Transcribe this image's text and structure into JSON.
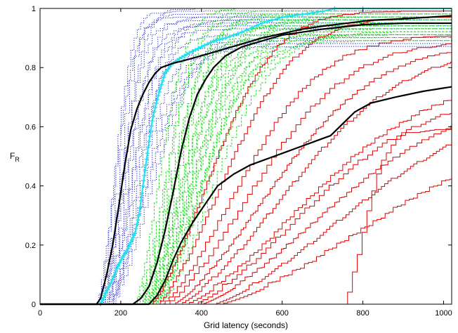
{
  "chart_data": {
    "type": "line",
    "xlabel": "Grid latency (seconds)",
    "ylabel": {
      "main": "F",
      "sub": "R"
    },
    "xlim": [
      0,
      1020
    ],
    "ylim": [
      0,
      1
    ],
    "x_ticks": [
      0,
      200,
      400,
      600,
      800,
      1000
    ],
    "x_tick_labels": [
      "0",
      "200",
      "400",
      "600",
      "800",
      "1000"
    ],
    "y_ticks": [
      0,
      0.2,
      0.4,
      0.6,
      0.8,
      1
    ],
    "y_tick_labels": [
      "0",
      "0.2",
      "0.4",
      "0.6",
      "0.8",
      "1"
    ],
    "grid": false,
    "legend": "none",
    "groups": [
      {
        "color": "#1a1ad8",
        "style": "dotted",
        "width": 1,
        "curves": [
          {
            "offset": 140,
            "half": 70,
            "sat": 0.96
          },
          {
            "offset": 145,
            "half": 60,
            "sat": 0.98
          },
          {
            "offset": 148,
            "half": 80,
            "sat": 0.95
          },
          {
            "offset": 150,
            "half": 65,
            "sat": 0.97
          },
          {
            "offset": 152,
            "half": 90,
            "sat": 0.93
          },
          {
            "offset": 155,
            "half": 75,
            "sat": 0.99
          },
          {
            "offset": 158,
            "half": 100,
            "sat": 0.92
          },
          {
            "offset": 160,
            "half": 85,
            "sat": 0.96
          },
          {
            "offset": 162,
            "half": 110,
            "sat": 0.9
          },
          {
            "offset": 165,
            "half": 95,
            "sat": 0.94
          },
          {
            "offset": 168,
            "half": 120,
            "sat": 0.88
          },
          {
            "offset": 170,
            "half": 130,
            "sat": 0.87
          },
          {
            "offset": 172,
            "half": 140,
            "sat": 0.86
          },
          {
            "offset": 175,
            "half": 105,
            "sat": 0.95
          },
          {
            "offset": 178,
            "half": 150,
            "sat": 0.89
          }
        ]
      },
      {
        "color": "#22dd22",
        "style": "dashed",
        "width": 1,
        "curves": [
          {
            "offset": 235,
            "half": 95,
            "sat": 0.99
          },
          {
            "offset": 240,
            "half": 110,
            "sat": 0.97
          },
          {
            "offset": 245,
            "half": 120,
            "sat": 0.95
          },
          {
            "offset": 248,
            "half": 100,
            "sat": 0.98
          },
          {
            "offset": 250,
            "half": 130,
            "sat": 0.93
          },
          {
            "offset": 255,
            "half": 115,
            "sat": 0.96
          },
          {
            "offset": 258,
            "half": 140,
            "sat": 0.92
          },
          {
            "offset": 260,
            "half": 125,
            "sat": 0.97
          },
          {
            "offset": 262,
            "half": 150,
            "sat": 0.91
          },
          {
            "offset": 265,
            "half": 135,
            "sat": 0.94
          },
          {
            "offset": 268,
            "half": 160,
            "sat": 0.9
          },
          {
            "offset": 270,
            "half": 145,
            "sat": 0.95
          },
          {
            "offset": 272,
            "half": 170,
            "sat": 0.89
          },
          {
            "offset": 275,
            "half": 155,
            "sat": 0.93
          },
          {
            "offset": 278,
            "half": 180,
            "sat": 0.88
          },
          {
            "offset": 280,
            "half": 165,
            "sat": 0.96
          },
          {
            "offset": 282,
            "half": 190,
            "sat": 0.92
          },
          {
            "offset": 285,
            "half": 200,
            "sat": 0.9
          },
          {
            "offset": 290,
            "half": 175,
            "sat": 0.94
          },
          {
            "offset": 295,
            "half": 210,
            "sat": 0.91
          }
        ]
      },
      {
        "color": "#e00000",
        "style": "solid",
        "width": 1,
        "curves": [
          {
            "offset": 275,
            "half": 230,
            "sat": 0.98
          },
          {
            "offset": 290,
            "half": 260,
            "sat": 0.96
          },
          {
            "offset": 300,
            "half": 300,
            "sat": 0.9
          },
          {
            "offset": 310,
            "half": 340,
            "sat": 0.88
          },
          {
            "offset": 330,
            "half": 380,
            "sat": 0.87
          },
          {
            "offset": 345,
            "half": 420,
            "sat": 0.86
          },
          {
            "offset": 360,
            "half": 460,
            "sat": 0.76
          },
          {
            "offset": 380,
            "half": 430,
            "sat": 0.7
          },
          {
            "offset": 400,
            "half": 480,
            "sat": 0.69
          },
          {
            "offset": 430,
            "half": 520,
            "sat": 0.68
          },
          {
            "offset": 445,
            "half": 600,
            "sat": 0.62
          },
          {
            "offset": 750,
            "half": 80,
            "sat": 0.58
          }
        ]
      }
    ],
    "cyan_series": {
      "color": "#22e0f0",
      "marker": "+",
      "points": [
        [
          150,
          0.0
        ],
        [
          160,
          0.03
        ],
        [
          175,
          0.07
        ],
        [
          190,
          0.12
        ],
        [
          205,
          0.16
        ],
        [
          215,
          0.18
        ],
        [
          225,
          0.21
        ],
        [
          235,
          0.24
        ],
        [
          245,
          0.3
        ],
        [
          255,
          0.4
        ],
        [
          262,
          0.47
        ],
        [
          270,
          0.55
        ],
        [
          278,
          0.62
        ],
        [
          288,
          0.68
        ],
        [
          298,
          0.73
        ],
        [
          310,
          0.78
        ],
        [
          325,
          0.81
        ],
        [
          345,
          0.83
        ],
        [
          370,
          0.85
        ],
        [
          400,
          0.87
        ],
        [
          430,
          0.89
        ],
        [
          460,
          0.9
        ],
        [
          500,
          0.92
        ],
        [
          550,
          0.95
        ],
        [
          600,
          0.97
        ],
        [
          650,
          0.98
        ],
        [
          700,
          0.99
        ],
        [
          730,
          1.0
        ],
        [
          800,
          1.0
        ],
        [
          1020,
          1.0
        ]
      ]
    },
    "black_series": [
      {
        "name": "",
        "points": [
          [
            0,
            0
          ],
          [
            140,
            0
          ],
          [
            150,
            0.02
          ],
          [
            165,
            0.1
          ],
          [
            180,
            0.2
          ],
          [
            195,
            0.33
          ],
          [
            210,
            0.47
          ],
          [
            225,
            0.59
          ],
          [
            240,
            0.66
          ],
          [
            255,
            0.71
          ],
          [
            270,
            0.75
          ],
          [
            285,
            0.78
          ],
          [
            300,
            0.8
          ],
          [
            330,
            0.815
          ],
          [
            360,
            0.825
          ],
          [
            400,
            0.84
          ],
          [
            450,
            0.86
          ],
          [
            500,
            0.88
          ],
          [
            550,
            0.9
          ],
          [
            600,
            0.915
          ],
          [
            650,
            0.93
          ],
          [
            700,
            0.94
          ],
          [
            760,
            0.95
          ],
          [
            820,
            0.96
          ],
          [
            900,
            0.965
          ],
          [
            1020,
            0.975
          ]
        ]
      },
      {
        "name": "",
        "points": [
          [
            0,
            0
          ],
          [
            230,
            0
          ],
          [
            250,
            0.02
          ],
          [
            270,
            0.06
          ],
          [
            290,
            0.14
          ],
          [
            310,
            0.25
          ],
          [
            330,
            0.38
          ],
          [
            350,
            0.52
          ],
          [
            370,
            0.63
          ],
          [
            390,
            0.71
          ],
          [
            410,
            0.76
          ],
          [
            430,
            0.8
          ],
          [
            460,
            0.84
          ],
          [
            500,
            0.87
          ],
          [
            550,
            0.89
          ],
          [
            600,
            0.91
          ],
          [
            650,
            0.92
          ],
          [
            700,
            0.93
          ],
          [
            800,
            0.945
          ],
          [
            900,
            0.95
          ],
          [
            1020,
            0.95
          ]
        ]
      },
      {
        "name": "",
        "points": [
          [
            0,
            0
          ],
          [
            270,
            0
          ],
          [
            290,
            0.03
          ],
          [
            310,
            0.08
          ],
          [
            330,
            0.15
          ],
          [
            350,
            0.21
          ],
          [
            380,
            0.28
          ],
          [
            410,
            0.34
          ],
          [
            440,
            0.4
          ],
          [
            480,
            0.44
          ],
          [
            520,
            0.47
          ],
          [
            560,
            0.49
          ],
          [
            600,
            0.51
          ],
          [
            640,
            0.53
          ],
          [
            680,
            0.55
          ],
          [
            720,
            0.57
          ],
          [
            750,
            0.61
          ],
          [
            780,
            0.65
          ],
          [
            820,
            0.68
          ],
          [
            880,
            0.7
          ],
          [
            950,
            0.72
          ],
          [
            1020,
            0.735
          ]
        ]
      }
    ]
  }
}
